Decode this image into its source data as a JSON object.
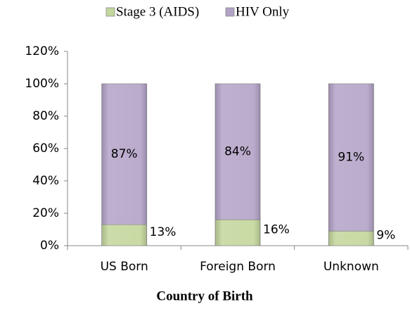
{
  "chart_data": {
    "type": "bar",
    "stacked": true,
    "x_label": "Country of Birth",
    "categories": [
      "US Born",
      "Foreign Born",
      "Unknown"
    ],
    "series": [
      {
        "name": "Stage 3 (AIDS)",
        "color": "#c3d69b",
        "values": [
          13,
          16,
          9
        ],
        "value_labels": [
          "13%",
          "16%",
          "9%"
        ]
      },
      {
        "name": "HIV Only",
        "color": "#b3a2c7",
        "values": [
          87,
          84,
          91
        ],
        "value_labels": [
          "87%",
          "84%",
          "91%"
        ]
      }
    ],
    "ylim": [
      0,
      120
    ],
    "yticks": [
      {
        "value": 0,
        "label": "0%"
      },
      {
        "value": 20,
        "label": "20%"
      },
      {
        "value": 40,
        "label": "40%"
      },
      {
        "value": 60,
        "label": "60%"
      },
      {
        "value": 80,
        "label": "80%"
      },
      {
        "value": 100,
        "label": "100%"
      },
      {
        "value": 120,
        "label": "120%"
      }
    ],
    "legend": "top"
  }
}
